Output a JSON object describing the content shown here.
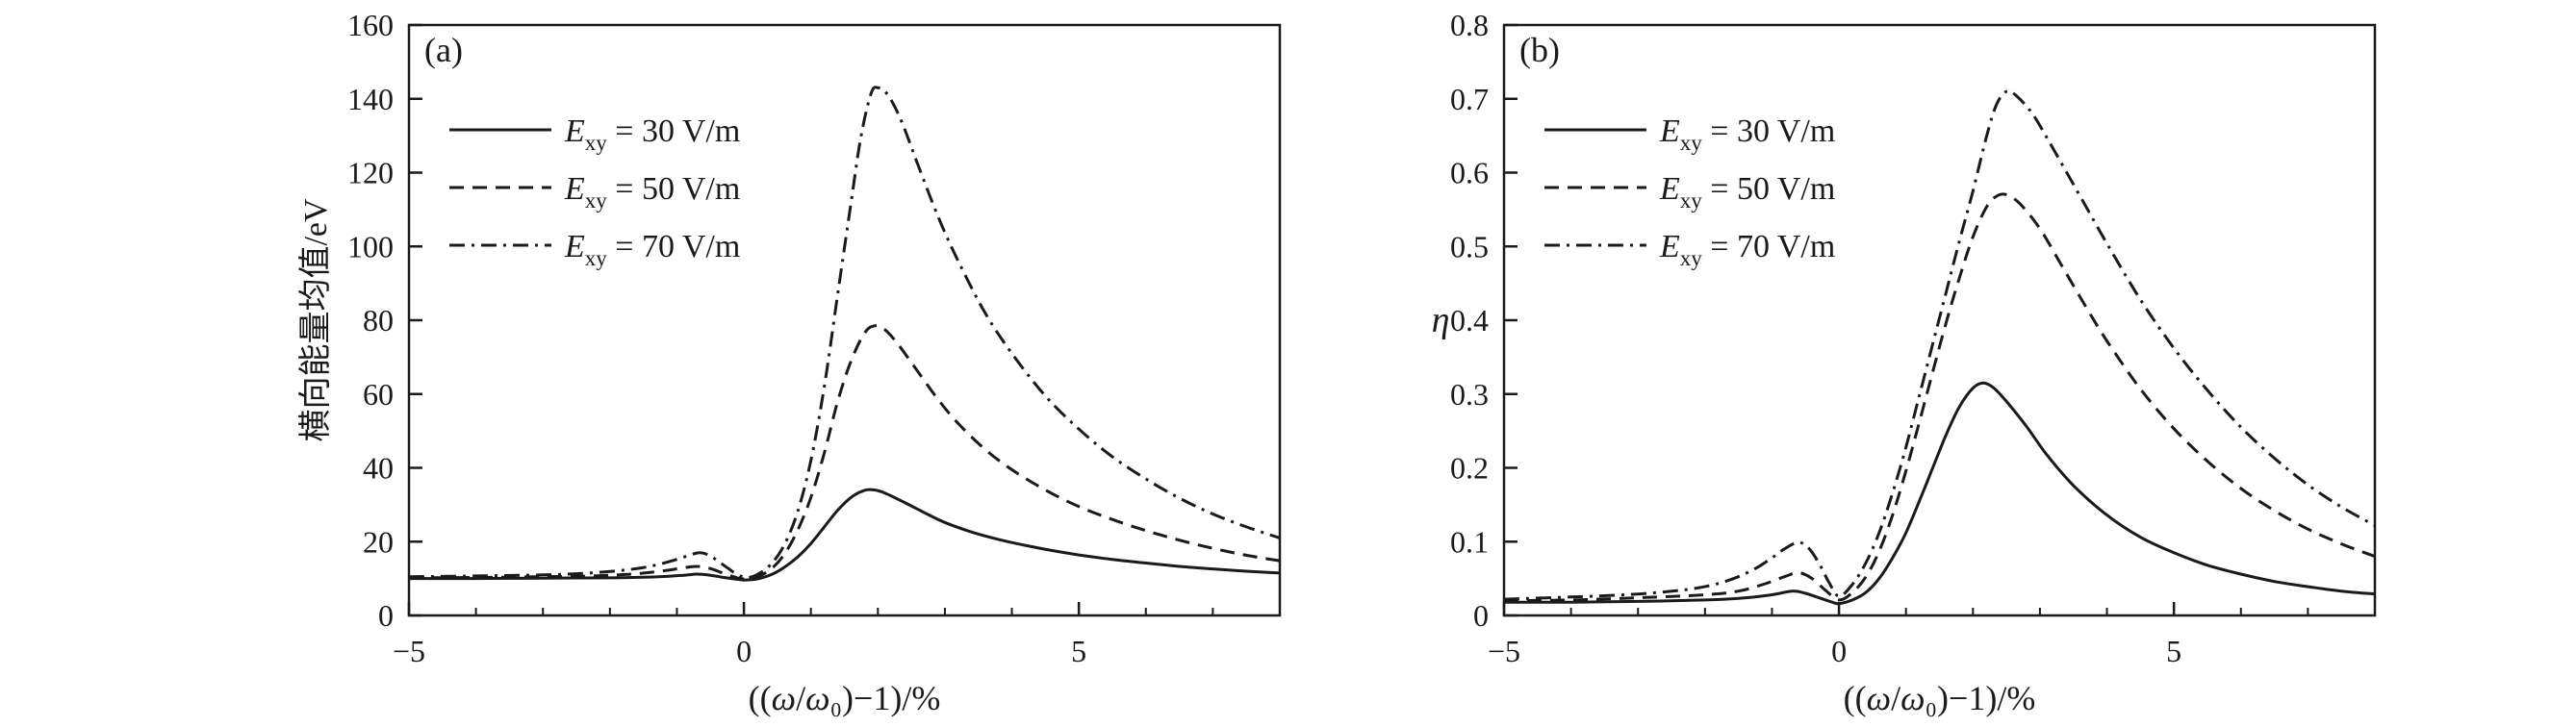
{
  "figure": {
    "background": "#ffffff",
    "line_color": "#1a1a1a"
  },
  "chart_data": [
    {
      "type": "line",
      "panel_label": "(a)",
      "title": "",
      "xlabel": "((ω/ω₀)−1)/%",
      "ylabel": "横向能量均值/eV",
      "ylabel_rotated": true,
      "xlim": [
        -5,
        8
      ],
      "ylim": [
        0,
        160
      ],
      "grid": false,
      "legend_position": "upper-left",
      "xticks": {
        "values": [
          -5,
          0,
          5
        ],
        "labels": [
          "−5",
          "0",
          "5"
        ],
        "minor_step": 1
      },
      "yticks": {
        "values": [
          0,
          20,
          40,
          60,
          80,
          100,
          120,
          140,
          160
        ],
        "labels": [
          "0",
          "20",
          "40",
          "60",
          "80",
          "100",
          "120",
          "140",
          "160"
        ]
      },
      "series": [
        {
          "name": "Exy = 30 V/m",
          "label_var": "E",
          "label_sub": "xy",
          "label_rest": "= 30 V/m",
          "line_style": "solid",
          "color": "#1a1a1a",
          "points": [
            [
              -5,
              10
            ],
            [
              -4.5,
              10
            ],
            [
              -4,
              10
            ],
            [
              -3.5,
              10.05
            ],
            [
              -3,
              10.1
            ],
            [
              -2.5,
              10.15
            ],
            [
              -2,
              10.2
            ],
            [
              -1.5,
              10.35
            ],
            [
              -1.2,
              10.55
            ],
            [
              -0.9,
              10.9
            ],
            [
              -0.7,
              11.2
            ],
            [
              -0.5,
              10.9
            ],
            [
              -0.3,
              10.3
            ],
            [
              -0.1,
              9.8
            ],
            [
              0,
              9.6
            ],
            [
              0.2,
              9.9
            ],
            [
              0.4,
              11
            ],
            [
              0.6,
              13
            ],
            [
              0.8,
              15.8
            ],
            [
              1,
              19.5
            ],
            [
              1.2,
              24
            ],
            [
              1.4,
              28.5
            ],
            [
              1.6,
              32
            ],
            [
              1.8,
              33.9
            ],
            [
              1.95,
              34
            ],
            [
              2.1,
              33.2
            ],
            [
              2.4,
              30.6
            ],
            [
              2.7,
              27.8
            ],
            [
              3,
              25.2
            ],
            [
              3.4,
              22.6
            ],
            [
              3.8,
              20.6
            ],
            [
              4.2,
              19
            ],
            [
              4.6,
              17.6
            ],
            [
              5,
              16.4
            ],
            [
              5.5,
              15.2
            ],
            [
              6,
              14.2
            ],
            [
              6.5,
              13.3
            ],
            [
              7,
              12.6
            ],
            [
              7.5,
              12
            ],
            [
              8,
              11.5
            ]
          ]
        },
        {
          "name": "Exy = 50 V/m",
          "label_var": "E",
          "label_sub": "xy",
          "label_rest": "= 50 V/m",
          "line_style": "dashed",
          "color": "#1a1a1a",
          "points": [
            [
              -5,
              10.2
            ],
            [
              -4,
              10.3
            ],
            [
              -3,
              10.5
            ],
            [
              -2.5,
              10.6
            ],
            [
              -2,
              10.9
            ],
            [
              -1.6,
              11.3
            ],
            [
              -1.2,
              12.1
            ],
            [
              -0.9,
              12.9
            ],
            [
              -0.7,
              13.3
            ],
            [
              -0.5,
              12.7
            ],
            [
              -0.3,
              11.4
            ],
            [
              -0.1,
              10.2
            ],
            [
              0,
              9.9
            ],
            [
              0.2,
              10.5
            ],
            [
              0.4,
              12.5
            ],
            [
              0.6,
              16.5
            ],
            [
              0.8,
              23
            ],
            [
              1,
              32
            ],
            [
              1.2,
              44
            ],
            [
              1.4,
              58
            ],
            [
              1.6,
              69
            ],
            [
              1.8,
              76.5
            ],
            [
              1.95,
              78.5
            ],
            [
              2.1,
              77.5
            ],
            [
              2.3,
              73.5
            ],
            [
              2.6,
              66
            ],
            [
              2.9,
              58.5
            ],
            [
              3.2,
              52
            ],
            [
              3.6,
              45
            ],
            [
              4,
              39.5
            ],
            [
              4.5,
              34
            ],
            [
              5,
              29.5
            ],
            [
              5.5,
              26
            ],
            [
              6,
              23
            ],
            [
              6.5,
              20.4
            ],
            [
              7,
              18.2
            ],
            [
              7.5,
              16.3
            ],
            [
              8,
              14.8
            ]
          ]
        },
        {
          "name": "Exy = 70 V/m",
          "label_var": "E",
          "label_sub": "xy",
          "label_rest": "= 70 V/m",
          "line_style": "dashdot",
          "color": "#1a1a1a",
          "points": [
            [
              -5,
              10.5
            ],
            [
              -4,
              10.7
            ],
            [
              -3,
              11
            ],
            [
              -2.5,
              11.3
            ],
            [
              -2,
              11.9
            ],
            [
              -1.6,
              12.7
            ],
            [
              -1.3,
              13.7
            ],
            [
              -1,
              15.2
            ],
            [
              -0.8,
              16.4
            ],
            [
              -0.65,
              17
            ],
            [
              -0.5,
              16.1
            ],
            [
              -0.3,
              13.6
            ],
            [
              -0.1,
              11.1
            ],
            [
              0.05,
              10.3
            ],
            [
              0.2,
              11.1
            ],
            [
              0.4,
              13.8
            ],
            [
              0.6,
              19
            ],
            [
              0.8,
              28
            ],
            [
              1,
              42
            ],
            [
              1.2,
              62
            ],
            [
              1.4,
              87
            ],
            [
              1.6,
              112
            ],
            [
              1.75,
              130
            ],
            [
              1.9,
              141.5
            ],
            [
              2,
              143
            ],
            [
              2.15,
              141
            ],
            [
              2.35,
              134
            ],
            [
              2.6,
              122
            ],
            [
              2.9,
              108
            ],
            [
              3.2,
              96
            ],
            [
              3.6,
              82
            ],
            [
              4,
              71
            ],
            [
              4.5,
              59.5
            ],
            [
              5,
              50.5
            ],
            [
              5.5,
              43
            ],
            [
              6,
              37
            ],
            [
              6.5,
              31.8
            ],
            [
              7,
              27.5
            ],
            [
              7.5,
              24
            ],
            [
              8,
              21
            ]
          ]
        }
      ]
    },
    {
      "type": "line",
      "panel_label": "(b)",
      "title": "",
      "xlabel": "((ω/ω₀)−1)/%",
      "ylabel": "η",
      "ylabel_rotated": false,
      "xlim": [
        -5,
        8
      ],
      "ylim": [
        0,
        0.8
      ],
      "grid": false,
      "legend_position": "upper-left",
      "xticks": {
        "values": [
          -5,
          0,
          5
        ],
        "labels": [
          "−5",
          "0",
          "5"
        ],
        "minor_step": 1
      },
      "yticks": {
        "values": [
          0,
          0.1,
          0.2,
          0.3,
          0.4,
          0.5,
          0.6,
          0.7,
          0.8
        ],
        "labels": [
          "0",
          "0.1",
          "0.2",
          "0.3",
          "0.4",
          "0.5",
          "0.6",
          "0.7",
          "0.8"
        ]
      },
      "series": [
        {
          "name": "Exy = 30 V/m",
          "label_var": "E",
          "label_sub": "xy",
          "label_rest": "= 30 V/m",
          "line_style": "solid",
          "color": "#1a1a1a",
          "points": [
            [
              -5,
              0.018
            ],
            [
              -4,
              0.018
            ],
            [
              -3,
              0.019
            ],
            [
              -2,
              0.021
            ],
            [
              -1.5,
              0.023
            ],
            [
              -1,
              0.028
            ],
            [
              -0.7,
              0.033
            ],
            [
              -0.5,
              0.03
            ],
            [
              -0.3,
              0.024
            ],
            [
              -0.1,
              0.018
            ],
            [
              0,
              0.016
            ],
            [
              0.2,
              0.021
            ],
            [
              0.4,
              0.031
            ],
            [
              0.6,
              0.05
            ],
            [
              0.8,
              0.078
            ],
            [
              1,
              0.112
            ],
            [
              1.2,
              0.155
            ],
            [
              1.4,
              0.2
            ],
            [
              1.6,
              0.245
            ],
            [
              1.8,
              0.283
            ],
            [
              2,
              0.308
            ],
            [
              2.15,
              0.315
            ],
            [
              2.3,
              0.309
            ],
            [
              2.5,
              0.29
            ],
            [
              2.8,
              0.256
            ],
            [
              3.1,
              0.218
            ],
            [
              3.5,
              0.176
            ],
            [
              4,
              0.136
            ],
            [
              4.5,
              0.106
            ],
            [
              5,
              0.085
            ],
            [
              5.5,
              0.068
            ],
            [
              6,
              0.056
            ],
            [
              6.5,
              0.046
            ],
            [
              7,
              0.039
            ],
            [
              7.5,
              0.033
            ],
            [
              8,
              0.029
            ]
          ]
        },
        {
          "name": "Exy = 50 V/m",
          "label_var": "E",
          "label_sub": "xy",
          "label_rest": "= 50 V/m",
          "line_style": "dashed",
          "color": "#1a1a1a",
          "points": [
            [
              -5,
              0.02
            ],
            [
              -4,
              0.021
            ],
            [
              -3,
              0.024
            ],
            [
              -2,
              0.028
            ],
            [
              -1.5,
              0.033
            ],
            [
              -1.1,
              0.043
            ],
            [
              -0.8,
              0.053
            ],
            [
              -0.6,
              0.058
            ],
            [
              -0.4,
              0.05
            ],
            [
              -0.2,
              0.034
            ],
            [
              0,
              0.021
            ],
            [
              0.2,
              0.031
            ],
            [
              0.4,
              0.052
            ],
            [
              0.6,
              0.087
            ],
            [
              0.8,
              0.136
            ],
            [
              1,
              0.196
            ],
            [
              1.2,
              0.262
            ],
            [
              1.4,
              0.33
            ],
            [
              1.6,
              0.397
            ],
            [
              1.8,
              0.458
            ],
            [
              2,
              0.513
            ],
            [
              2.2,
              0.553
            ],
            [
              2.35,
              0.568
            ],
            [
              2.5,
              0.57
            ],
            [
              2.7,
              0.558
            ],
            [
              3,
              0.524
            ],
            [
              3.3,
              0.478
            ],
            [
              3.7,
              0.416
            ],
            [
              4,
              0.372
            ],
            [
              4.5,
              0.307
            ],
            [
              5,
              0.253
            ],
            [
              5.5,
              0.209
            ],
            [
              6,
              0.172
            ],
            [
              6.5,
              0.142
            ],
            [
              7,
              0.117
            ],
            [
              7.5,
              0.097
            ],
            [
              8,
              0.08
            ]
          ]
        },
        {
          "name": "Exy = 70 V/m",
          "label_var": "E",
          "label_sub": "xy",
          "label_rest": "= 70 V/m",
          "line_style": "dashdot",
          "color": "#1a1a1a",
          "points": [
            [
              -5,
              0.022
            ],
            [
              -4,
              0.025
            ],
            [
              -3,
              0.029
            ],
            [
              -2.2,
              0.036
            ],
            [
              -1.7,
              0.046
            ],
            [
              -1.3,
              0.061
            ],
            [
              -1,
              0.078
            ],
            [
              -0.8,
              0.091
            ],
            [
              -0.6,
              0.099
            ],
            [
              -0.45,
              0.091
            ],
            [
              -0.3,
              0.071
            ],
            [
              -0.15,
              0.045
            ],
            [
              0,
              0.026
            ],
            [
              0.2,
              0.042
            ],
            [
              0.4,
              0.071
            ],
            [
              0.6,
              0.112
            ],
            [
              0.8,
              0.166
            ],
            [
              1,
              0.228
            ],
            [
              1.2,
              0.298
            ],
            [
              1.4,
              0.368
            ],
            [
              1.6,
              0.438
            ],
            [
              1.8,
              0.508
            ],
            [
              2,
              0.575
            ],
            [
              2.2,
              0.648
            ],
            [
              2.35,
              0.692
            ],
            [
              2.5,
              0.71
            ],
            [
              2.65,
              0.704
            ],
            [
              2.9,
              0.678
            ],
            [
              3.2,
              0.632
            ],
            [
              3.6,
              0.568
            ],
            [
              4,
              0.504
            ],
            [
              4.5,
              0.428
            ],
            [
              5,
              0.362
            ],
            [
              5.5,
              0.305
            ],
            [
              6,
              0.255
            ],
            [
              6.5,
              0.213
            ],
            [
              7,
              0.177
            ],
            [
              7.5,
              0.147
            ],
            [
              8,
              0.122
            ]
          ]
        }
      ]
    }
  ]
}
